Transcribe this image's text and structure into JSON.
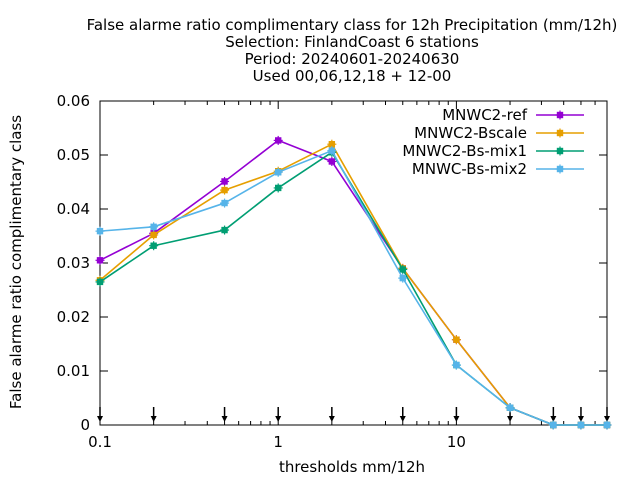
{
  "chart_data": {
    "type": "line",
    "title_lines": [
      "False alarme ratio complimentary class  for 12h Precipitation (mm/12h)",
      "Selection: FinlandCoast      6 stations",
      "Period: 20240601-20240630",
      "Used 00,06,12,18 + 12-00"
    ],
    "xlabel": "thresholds mm/12h",
    "ylabel": "False alarme ratio complimentary class",
    "xscale": "log",
    "xlim": [
      0.1,
      70
    ],
    "ylim": [
      0,
      0.06
    ],
    "x_ticks": [
      0.1,
      1,
      10
    ],
    "x_tick_labels": [
      "0.1",
      "1",
      "10"
    ],
    "y_ticks": [
      0,
      0.01,
      0.02,
      0.03,
      0.04,
      0.05,
      0.06
    ],
    "y_tick_labels": [
      "0",
      "0.01",
      "0.02",
      "0.03",
      "0.04",
      "0.05",
      "0.06"
    ],
    "arrow_marks_x": [
      0.1,
      0.2,
      0.5,
      1,
      2,
      5,
      10,
      20,
      35,
      50,
      70
    ],
    "legend_position": "top-right",
    "grid": false,
    "x": [
      0.1,
      0.2,
      0.5,
      1,
      2,
      5,
      10,
      20,
      35,
      50,
      70
    ],
    "series": [
      {
        "name": "MNWC2-ref",
        "color": "#9400d3",
        "values": [
          0.0305,
          0.0355,
          0.0451,
          0.0527,
          0.0488,
          0.029,
          0.0158,
          0.0032,
          0.0,
          0.0,
          0.0
        ]
      },
      {
        "name": "MNWC2-Bscale",
        "color": "#e69f00",
        "values": [
          0.0268,
          0.0352,
          0.0435,
          0.047,
          0.052,
          0.029,
          0.0158,
          0.0032,
          0.0,
          0.0,
          0.0
        ]
      },
      {
        "name": "MNWC2-Bs-mix1",
        "color": "#009e73",
        "values": [
          0.0265,
          0.0332,
          0.0361,
          0.0439,
          0.0505,
          0.0288,
          0.0111,
          0.0032,
          0.0,
          0.0,
          0.0
        ]
      },
      {
        "name": "MNWC-Bs-mix2",
        "color": "#56b4e9",
        "values": [
          0.0359,
          0.0367,
          0.0411,
          0.0468,
          0.0508,
          0.0272,
          0.0111,
          0.0032,
          0.0,
          0.0,
          0.0
        ]
      }
    ]
  }
}
